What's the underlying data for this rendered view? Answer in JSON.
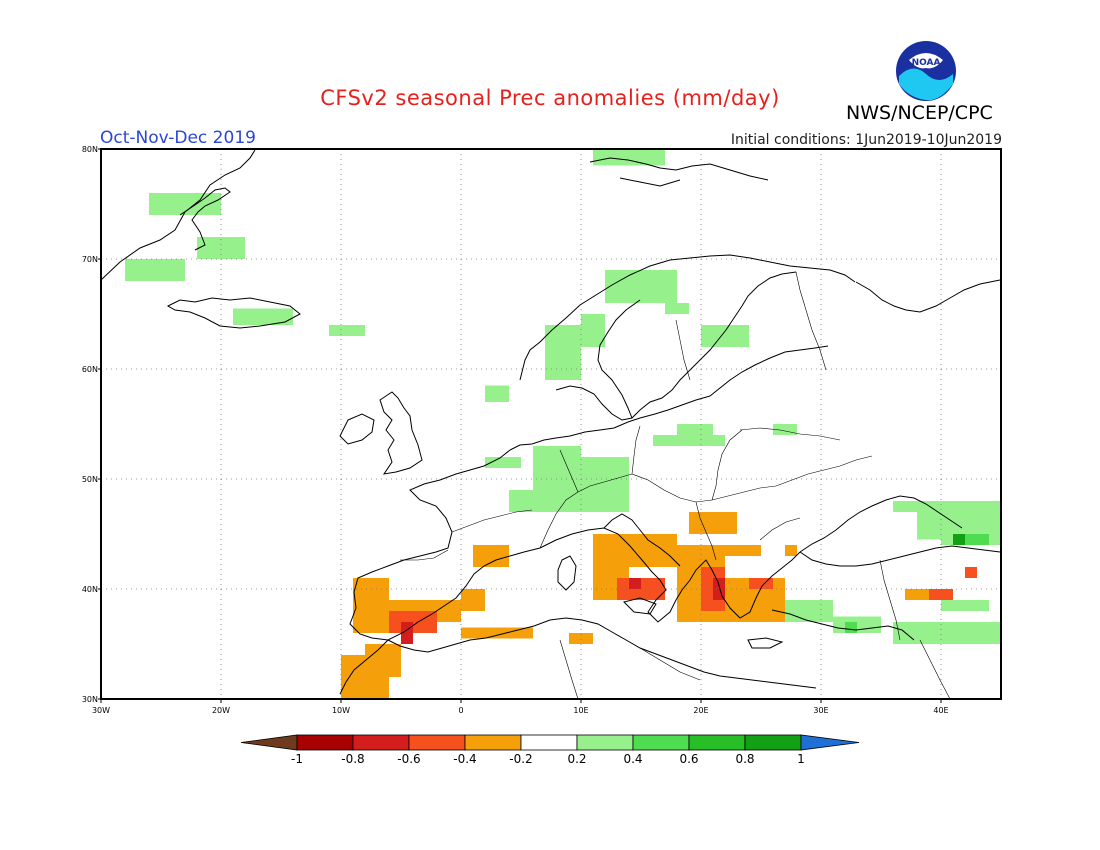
{
  "title": "CFSv2 seasonal Prec anomalies (mm/day)",
  "organization": "NWS/NCEP/CPC",
  "logo_text": "NOAA",
  "season_label": "Oct-Nov-Dec 2019",
  "initial_conditions": "Initial conditions: 1Jun2019-10Jun2019",
  "map": {
    "lon_range": [
      -30,
      45
    ],
    "lat_range": [
      30,
      80
    ],
    "grid": true,
    "lat_ticks": [
      "30N",
      "40N",
      "50N",
      "60N",
      "70N",
      "80N"
    ],
    "lon_ticks": [
      "30W",
      "20W",
      "10W",
      "0",
      "10E",
      "20E",
      "30E",
      "40E"
    ]
  },
  "colorbar": {
    "labels": [
      "-1",
      "-0.8",
      "-0.6",
      "-0.4",
      "-0.2",
      "0.2",
      "0.4",
      "0.6",
      "0.8",
      "1"
    ],
    "colors": [
      "#6e3b1f",
      "#a80000",
      "#d41e1e",
      "#f5501e",
      "#f5a00a",
      "#ffffff",
      "#96f08c",
      "#50dc50",
      "#28be28",
      "#14a014",
      "#1f6fd6"
    ]
  },
  "anomaly_colors": {
    "light_green": "#96f08c",
    "green": "#50dc50",
    "dark_green": "#14a014",
    "orange": "#f5a00a",
    "red_orange": "#f5501e",
    "red": "#d41e1e",
    "dark_red": "#a80000"
  },
  "anomaly_cells": [
    {
      "c": "light_green",
      "lon": -28,
      "lat": 68,
      "w": 5,
      "h": 2
    },
    {
      "c": "light_green",
      "lon": -22,
      "lat": 70,
      "w": 4,
      "h": 2
    },
    {
      "c": "light_green",
      "lon": -26,
      "lat": 74,
      "w": 6,
      "h": 2
    },
    {
      "c": "light_green",
      "lon": -19,
      "lat": 64,
      "w": 5,
      "h": 1.5
    },
    {
      "c": "light_green",
      "lon": -11,
      "lat": 63,
      "w": 3,
      "h": 1
    },
    {
      "c": "light_green",
      "lon": 7,
      "lat": 59,
      "w": 3,
      "h": 5
    },
    {
      "c": "light_green",
      "lon": 10,
      "lat": 62,
      "w": 2,
      "h": 3
    },
    {
      "c": "light_green",
      "lon": 12,
      "lat": 66,
      "w": 6,
      "h": 3
    },
    {
      "c": "light_green",
      "lon": 20,
      "lat": 62,
      "w": 4,
      "h": 2
    },
    {
      "c": "light_green",
      "lon": 17,
      "lat": 65,
      "w": 2,
      "h": 1
    },
    {
      "c": "light_green",
      "lon": 2,
      "lat": 57,
      "w": 2,
      "h": 1.5
    },
    {
      "c": "light_green",
      "lon": 6,
      "lat": 49,
      "w": 4,
      "h": 4
    },
    {
      "c": "light_green",
      "lon": 2,
      "lat": 51,
      "w": 3,
      "h": 1
    },
    {
      "c": "light_green",
      "lon": 4,
      "lat": 47,
      "w": 10,
      "h": 2
    },
    {
      "c": "light_green",
      "lon": 10,
      "lat": 49,
      "w": 4,
      "h": 3
    },
    {
      "c": "light_green",
      "lon": 16,
      "lat": 53,
      "w": 6,
      "h": 1
    },
    {
      "c": "light_green",
      "lon": 18,
      "lat": 54,
      "w": 3,
      "h": 1
    },
    {
      "c": "light_green",
      "lon": 26,
      "lat": 54,
      "w": 2,
      "h": 1
    },
    {
      "c": "light_green",
      "lon": 11,
      "lat": 78.5,
      "w": 6,
      "h": 1.5
    },
    {
      "c": "light_green",
      "lon": 40,
      "lat": 44,
      "w": 5,
      "h": 3
    },
    {
      "c": "light_green",
      "lon": 36,
      "lat": 47,
      "w": 9,
      "h": 1
    },
    {
      "c": "light_green",
      "lon": 38,
      "lat": 44.5,
      "w": 4,
      "h": 3.5
    },
    {
      "c": "green",
      "lon": 41,
      "lat": 44,
      "w": 3,
      "h": 1
    },
    {
      "c": "dark_green",
      "lon": 41,
      "lat": 44,
      "w": 1,
      "h": 1
    },
    {
      "c": "light_green",
      "lon": 27,
      "lat": 37,
      "w": 4,
      "h": 2
    },
    {
      "c": "light_green",
      "lon": 31,
      "lat": 36,
      "w": 4,
      "h": 1.5
    },
    {
      "c": "light_green",
      "lon": 36,
      "lat": 35,
      "w": 7,
      "h": 2
    },
    {
      "c": "light_green",
      "lon": 41,
      "lat": 35,
      "w": 4,
      "h": 2
    },
    {
      "c": "green",
      "lon": 32,
      "lat": 36,
      "w": 1,
      "h": 1
    },
    {
      "c": "light_green",
      "lon": 40,
      "lat": 38,
      "w": 4,
      "h": 1
    },
    {
      "c": "orange",
      "lon": -9,
      "lat": 36,
      "w": 3,
      "h": 5
    },
    {
      "c": "orange",
      "lon": -6,
      "lat": 37,
      "w": 6,
      "h": 2
    },
    {
      "c": "orange",
      "lon": -10,
      "lat": 30,
      "w": 4,
      "h": 4
    },
    {
      "c": "orange",
      "lon": -8,
      "lat": 32,
      "w": 3,
      "h": 3
    },
    {
      "c": "orange",
      "lon": 0,
      "lat": 38,
      "w": 2,
      "h": 2
    },
    {
      "c": "orange",
      "lon": 1,
      "lat": 42,
      "w": 3,
      "h": 2
    },
    {
      "c": "orange",
      "lon": 0,
      "lat": 35.5,
      "w": 6,
      "h": 1
    },
    {
      "c": "orange",
      "lon": 9,
      "lat": 35,
      "w": 2,
      "h": 1
    },
    {
      "c": "orange",
      "lon": 11,
      "lat": 39,
      "w": 3,
      "h": 6
    },
    {
      "c": "orange",
      "lon": 13,
      "lat": 42,
      "w": 5,
      "h": 3
    },
    {
      "c": "orange",
      "lon": 18,
      "lat": 37,
      "w": 4,
      "h": 7
    },
    {
      "c": "orange",
      "lon": 19,
      "lat": 45,
      "w": 4,
      "h": 2
    },
    {
      "c": "orange",
      "lon": 22,
      "lat": 43,
      "w": 3,
      "h": 1
    },
    {
      "c": "orange",
      "lon": 22,
      "lat": 37,
      "w": 5,
      "h": 4
    },
    {
      "c": "orange",
      "lon": 27,
      "lat": 43,
      "w": 1,
      "h": 1
    },
    {
      "c": "orange",
      "lon": 37,
      "lat": 39,
      "w": 2,
      "h": 1
    },
    {
      "c": "red_orange",
      "lon": -6,
      "lat": 36,
      "w": 4,
      "h": 2
    },
    {
      "c": "red_orange",
      "lon": 13,
      "lat": 39,
      "w": 4,
      "h": 2
    },
    {
      "c": "red_orange",
      "lon": 20,
      "lat": 38,
      "w": 2,
      "h": 4
    },
    {
      "c": "red_orange",
      "lon": 24,
      "lat": 40,
      "w": 2,
      "h": 1
    },
    {
      "c": "red_orange",
      "lon": 39,
      "lat": 39,
      "w": 2,
      "h": 1
    },
    {
      "c": "red_orange",
      "lon": 42,
      "lat": 41,
      "w": 1,
      "h": 1
    },
    {
      "c": "red",
      "lon": -5,
      "lat": 35,
      "w": 1,
      "h": 2
    },
    {
      "c": "red",
      "lon": 14,
      "lat": 40,
      "w": 1,
      "h": 1
    },
    {
      "c": "red",
      "lon": 21,
      "lat": 39,
      "w": 1,
      "h": 2
    }
  ]
}
